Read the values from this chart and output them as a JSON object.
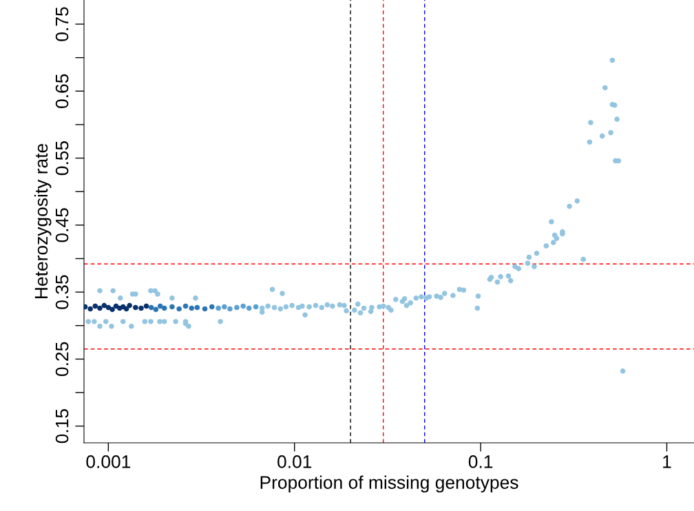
{
  "chart_data": {
    "type": "scatter",
    "xlabel": "Proportion of missing genotypes",
    "ylabel": "Heterozygosity rate",
    "log": "x",
    "xlim": [
      0.00074,
      1.4
    ],
    "ylim": [
      0.125,
      0.786
    ],
    "xticks": [
      0.001,
      0.01,
      0.1,
      1
    ],
    "yticks": [
      0.15,
      {
        "value": 0.2,
        "label": null
      },
      0.25,
      {
        "value": 0.3,
        "label": null
      },
      0.35,
      {
        "value": 0.4,
        "label": null
      },
      0.45,
      {
        "value": 0.5,
        "label": null
      },
      0.55,
      {
        "value": 0.6,
        "label": null
      },
      0.65,
      {
        "value": 0.7,
        "label": null
      },
      0.75
    ],
    "grid": false,
    "legend": false,
    "marker": "circle",
    "ref_lines": [
      {
        "axis": "x",
        "value": 0.02,
        "color": "#000000",
        "line_style": "dashed"
      },
      {
        "axis": "x",
        "value": 0.03,
        "color": "#ff0000",
        "line_style": "dashed"
      },
      {
        "axis": "x",
        "value": 0.05,
        "color": "#0000ff",
        "line_style": "dashed"
      },
      {
        "axis": "y",
        "value": 0.392,
        "color": "#ff0000",
        "line_style": "dashed"
      },
      {
        "axis": "y",
        "value": 0.265,
        "color": "#ff0000",
        "line_style": "dashed"
      }
    ],
    "series": [
      {
        "color": "#93c4e0",
        "x": [
          0.0009,
          0.00106,
          0.00169,
          0.00178,
          0.00135,
          0.0014,
          0.00184,
          0.00116,
          0.0022,
          0.00294,
          0.0076,
          0.0086,
          0.00078,
          0.00084,
          0.00097,
          0.0012,
          0.00157,
          0.00169,
          0.00189,
          0.002,
          0.0023,
          0.0026,
          0.004,
          0.0009,
          0.00104,
          0.00133,
          0.0027,
          0.0026,
          0.0114,
          0.0067,
          0.0067,
          0.0072,
          0.0078,
          0.0084,
          0.009,
          0.0097,
          0.0105,
          0.011,
          0.012,
          0.013,
          0.014,
          0.015,
          0.016,
          0.0175,
          0.0185,
          0.019,
          0.021,
          0.0219,
          0.0226,
          0.0236,
          0.0257,
          0.026,
          0.0286,
          0.03,
          0.032,
          0.033,
          0.035,
          0.038,
          0.039,
          0.04,
          0.042,
          0.045,
          0.048,
          0.051,
          0.053,
          0.058,
          0.061,
          0.064,
          0.071,
          0.077,
          0.081,
          0.096,
          0.097,
          0.112,
          0.114,
          0.123,
          0.128,
          0.141,
          0.145,
          0.153,
          0.16,
          0.179,
          0.182,
          0.194,
          0.2,
          0.225,
          0.24,
          0.246,
          0.25,
          0.256,
          0.275,
          0.275,
          0.3,
          0.33,
          0.356,
          0.385,
          0.39,
          0.45,
          0.466,
          0.5,
          0.51,
          0.51,
          0.525,
          0.53,
          0.54,
          0.55,
          0.58
        ],
        "values": [
          0.352,
          0.352,
          0.352,
          0.352,
          0.347,
          0.347,
          0.347,
          0.341,
          0.341,
          0.341,
          0.354,
          0.348,
          0.306,
          0.306,
          0.306,
          0.306,
          0.306,
          0.306,
          0.306,
          0.306,
          0.306,
          0.306,
          0.306,
          0.299,
          0.299,
          0.299,
          0.299,
          0.303,
          0.316,
          0.32,
          0.326,
          0.329,
          0.327,
          0.325,
          0.328,
          0.33,
          0.327,
          0.329,
          0.328,
          0.33,
          0.327,
          0.331,
          0.329,
          0.331,
          0.33,
          0.322,
          0.323,
          0.332,
          0.319,
          0.326,
          0.321,
          0.327,
          0.328,
          0.329,
          0.327,
          0.323,
          0.339,
          0.336,
          0.34,
          0.33,
          0.334,
          0.341,
          0.343,
          0.341,
          0.343,
          0.344,
          0.342,
          0.348,
          0.345,
          0.354,
          0.353,
          0.326,
          0.344,
          0.369,
          0.372,
          0.365,
          0.373,
          0.374,
          0.367,
          0.388,
          0.385,
          0.393,
          0.402,
          0.388,
          0.408,
          0.419,
          0.455,
          0.424,
          0.435,
          0.43,
          0.437,
          0.44,
          0.478,
          0.486,
          0.399,
          0.574,
          0.603,
          0.583,
          0.655,
          0.588,
          0.696,
          0.63,
          0.629,
          0.546,
          0.608,
          0.546,
          0.232
        ]
      },
      {
        "color": "#5aa0d0",
        "x": [
          0.0039,
          0.0042,
          0.0045,
          0.0049,
          0.0053,
          0.0057,
          0.0062
        ],
        "values": [
          0.326,
          0.328,
          0.325,
          0.327,
          0.329,
          0.326,
          0.328
        ]
      },
      {
        "color": "#2b75b4",
        "x": [
          0.0017,
          0.0018,
          0.0019,
          0.002,
          0.0022,
          0.0024,
          0.0026,
          0.0028,
          0.003,
          0.0033,
          0.0036
        ],
        "values": [
          0.327,
          0.324,
          0.329,
          0.326,
          0.328,
          0.325,
          0.329,
          0.326,
          0.327,
          0.325,
          0.328
        ]
      },
      {
        "color": "#08306b",
        "x": [
          0.00075,
          0.0008,
          0.00085,
          0.0009,
          0.00095,
          0.001,
          0.00105,
          0.0011,
          0.00115,
          0.0012,
          0.00125,
          0.0013,
          0.0014,
          0.0015,
          0.0016
        ],
        "values": [
          0.328,
          0.325,
          0.329,
          0.326,
          0.33,
          0.327,
          0.324,
          0.329,
          0.326,
          0.328,
          0.325,
          0.33,
          0.327,
          0.326,
          0.329
        ]
      }
    ]
  }
}
